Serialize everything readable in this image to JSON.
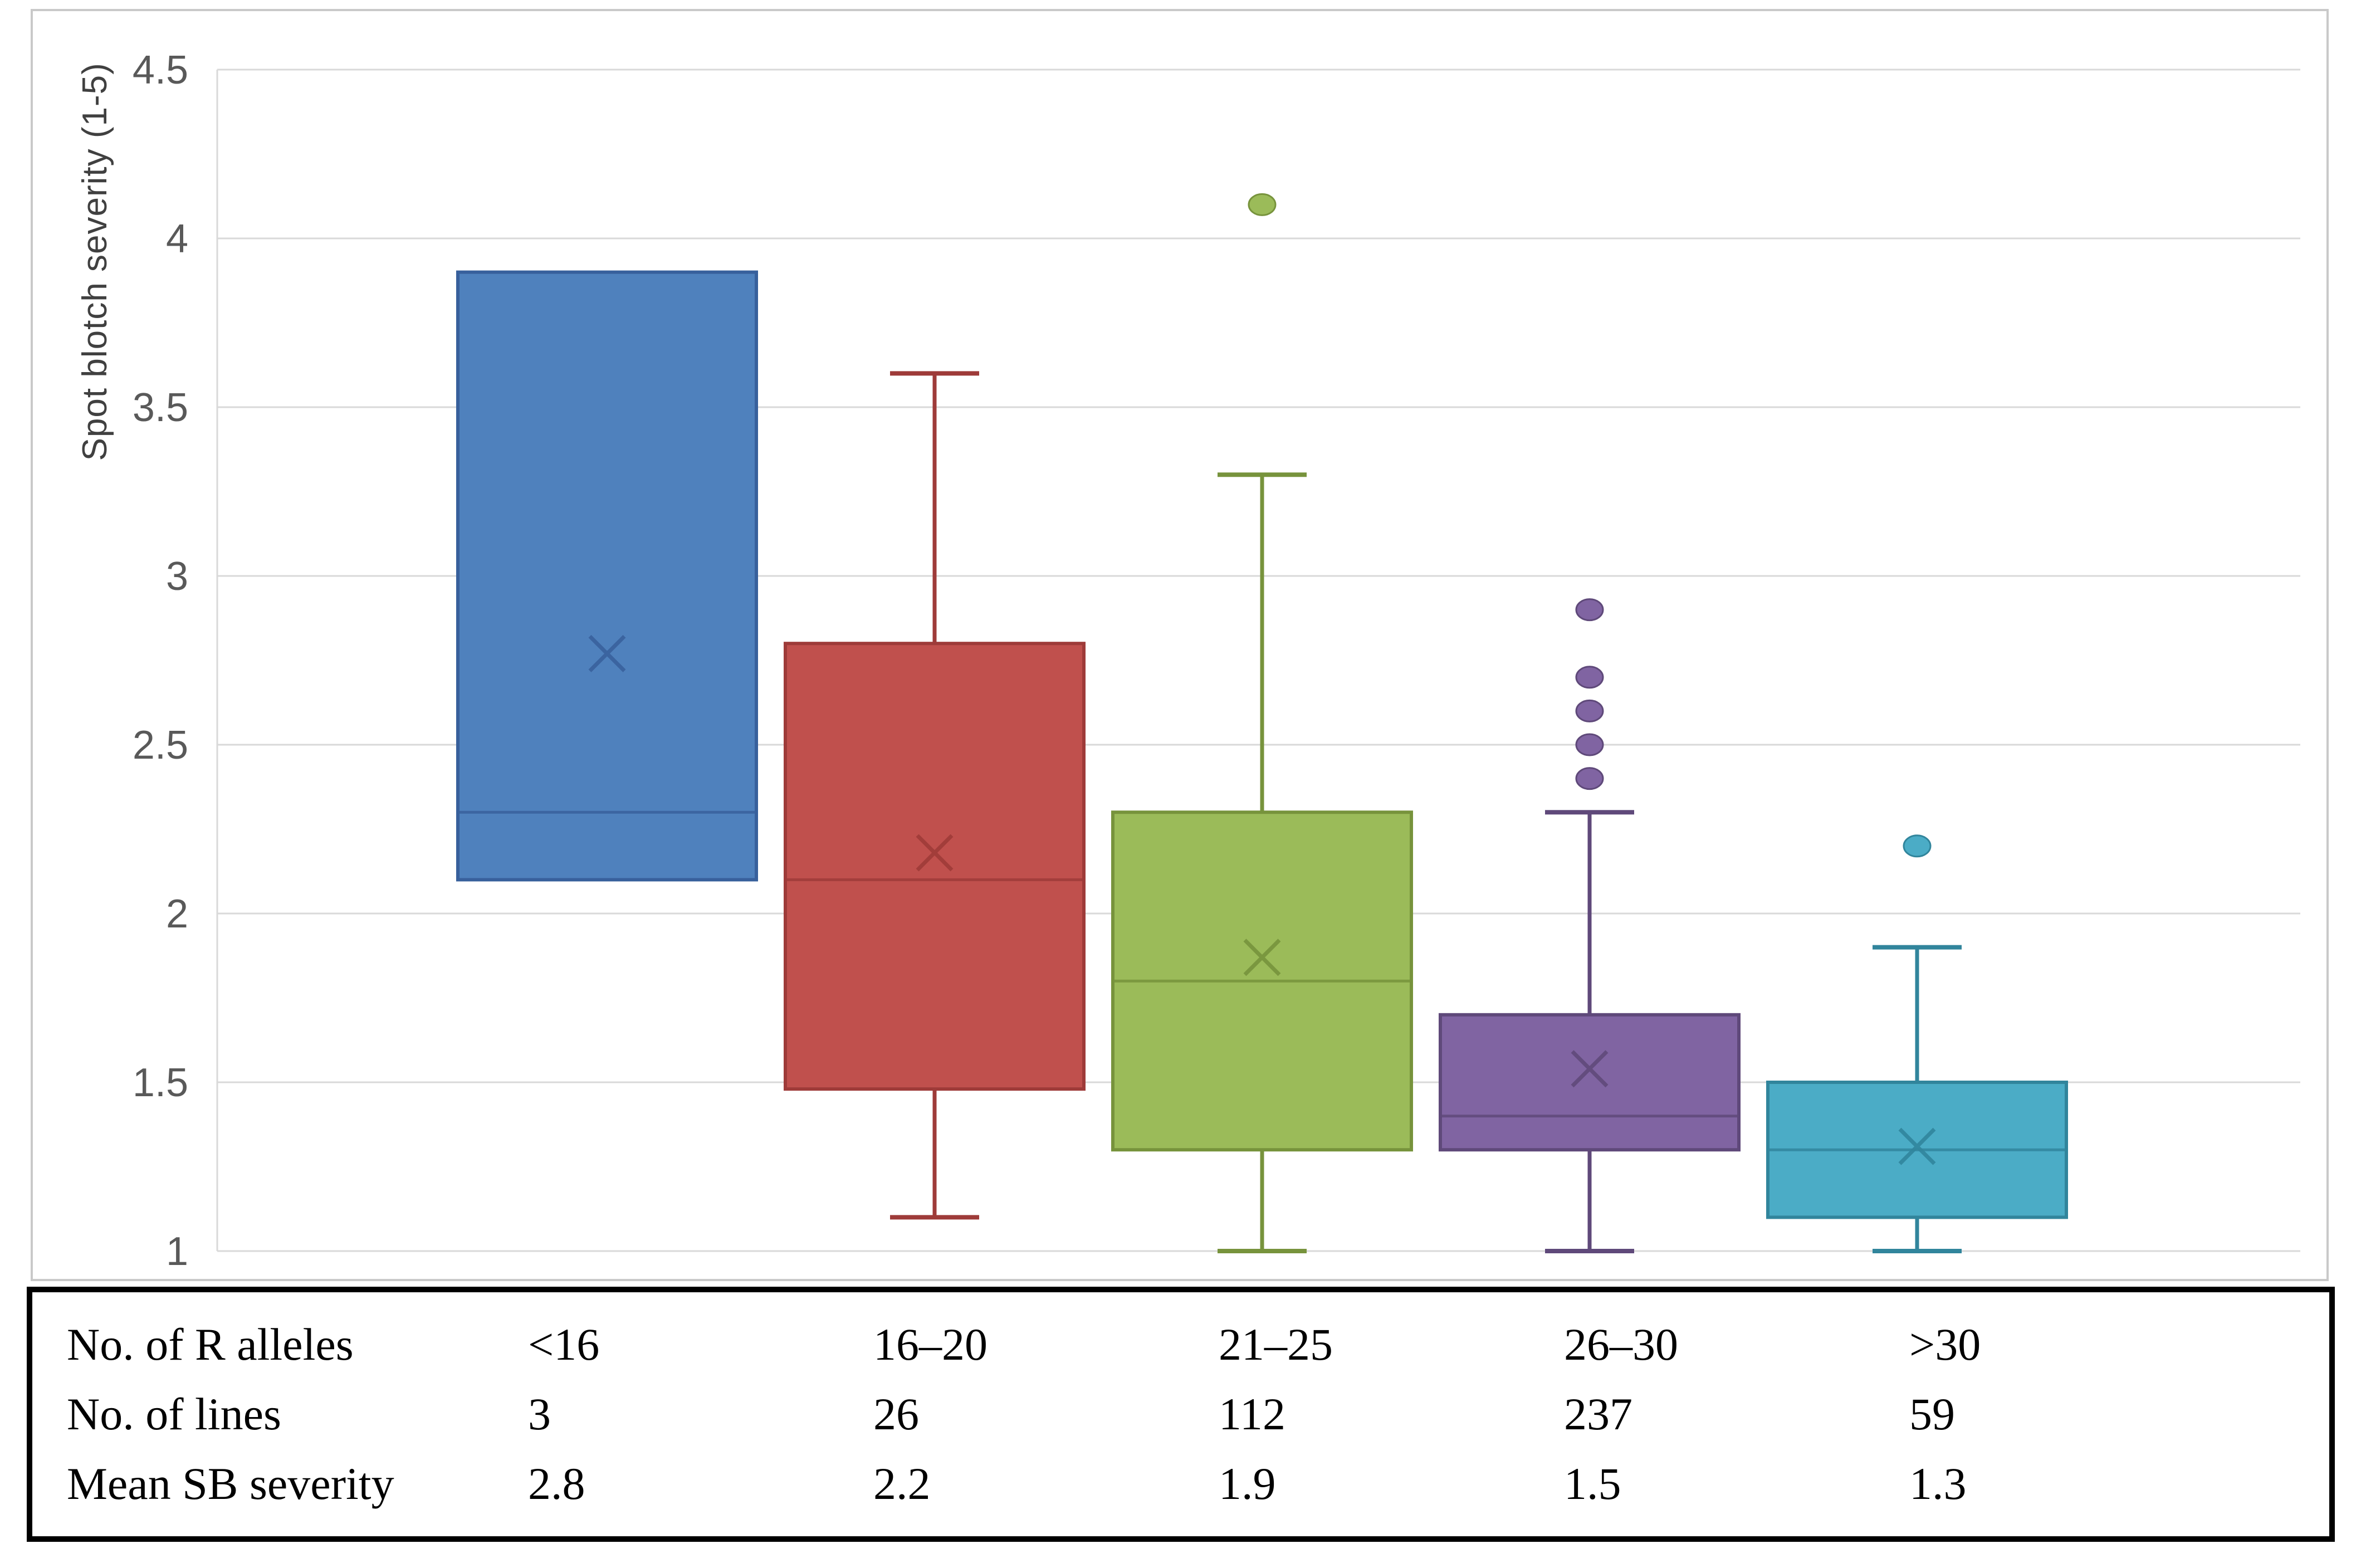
{
  "chart_data": {
    "type": "boxplot",
    "ylabel": "Spot blotch severity (1-5)",
    "ylim": [
      1,
      4.5
    ],
    "yticks": [
      1,
      1.5,
      2,
      2.5,
      3,
      3.5,
      4,
      4.5
    ],
    "ytick_labels": [
      "1",
      "1.5",
      "2",
      "2.5",
      "3",
      "3.5",
      "4",
      "4.5"
    ],
    "grid": "horizontal",
    "legend": "none",
    "categories": [
      "<16",
      "16–20",
      "21–25",
      "26–30",
      ">30"
    ],
    "colors": {
      "gridline": "#d9d9d9",
      "axis_line": "#d9d9d9",
      "tick_text": "#595959",
      "axis_title_text": "#404040"
    },
    "series": [
      {
        "category": "<16",
        "fill": "#4f81bd",
        "edge": "#38609c",
        "whisker_low": 2.1,
        "q1": 2.1,
        "median": 2.3,
        "q3": 3.9,
        "whisker_high": 3.9,
        "mean": 2.77,
        "outliers": []
      },
      {
        "category": "16–20",
        "fill": "#c0504d",
        "edge": "#9e3b39",
        "whisker_low": 1.1,
        "q1": 1.48,
        "median": 2.1,
        "q3": 2.8,
        "whisker_high": 3.6,
        "mean": 2.18,
        "outliers": []
      },
      {
        "category": "21–25",
        "fill": "#9bbb59",
        "edge": "#77933c",
        "whisker_low": 1.0,
        "q1": 1.3,
        "median": 1.8,
        "q3": 2.3,
        "whisker_high": 3.3,
        "mean": 1.87,
        "outliers": [
          4.1
        ]
      },
      {
        "category": "26–30",
        "fill": "#8064a2",
        "edge": "#5f497a",
        "whisker_low": 1.0,
        "q1": 1.3,
        "median": 1.4,
        "q3": 1.7,
        "whisker_high": 2.3,
        "mean": 1.54,
        "outliers": [
          2.4,
          2.5,
          2.6,
          2.7,
          2.9
        ]
      },
      {
        "category": ">30",
        "fill": "#4bacc6",
        "edge": "#31859c",
        "whisker_low": 1.0,
        "q1": 1.1,
        "median": 1.3,
        "q3": 1.5,
        "whisker_high": 1.9,
        "mean": 1.31,
        "outliers": [
          2.2
        ]
      }
    ]
  },
  "table": {
    "rows": [
      {
        "label": "No. of R alleles",
        "values": [
          "<16",
          "16–20",
          "21–25",
          "26–30",
          ">30"
        ]
      },
      {
        "label": "No. of lines",
        "values": [
          "3",
          "26",
          "112",
          "237",
          "59"
        ]
      },
      {
        "label": "Mean SB severity",
        "values": [
          "2.8",
          "2.2",
          "1.9",
          "1.5",
          "1.3"
        ]
      }
    ]
  }
}
